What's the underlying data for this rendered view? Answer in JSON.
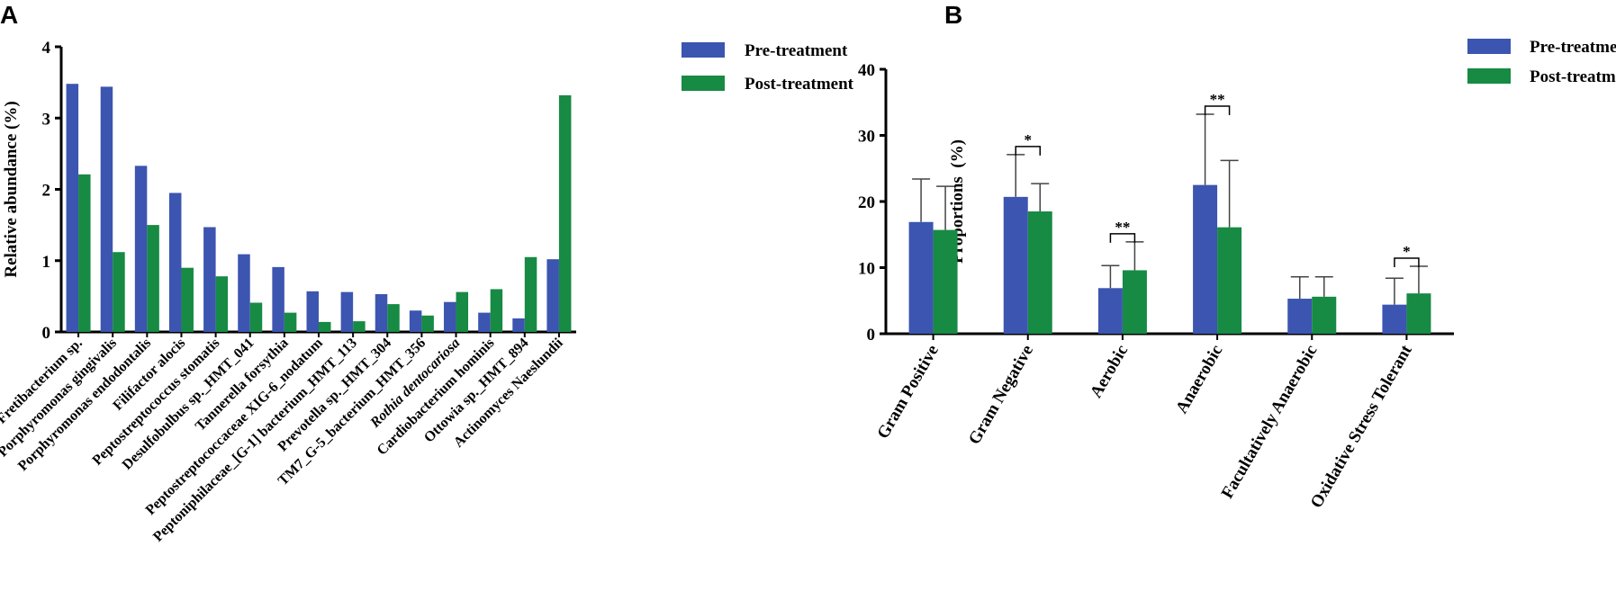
{
  "panels": {
    "a": "A",
    "b": "B"
  },
  "colors": {
    "pre": "#3c55b0",
    "post": "#178a44"
  },
  "chart_data": [
    {
      "type": "bar",
      "panel": "A",
      "ylabel": "Relative abundance (%)",
      "ylim": [
        0,
        4
      ],
      "yticks": [
        0,
        1,
        2,
        3,
        4
      ],
      "categories": [
        "Fretibacterium sp.",
        "Porphyromonas gingivalis",
        "Porphyromonas endodontalis",
        "Filifactor alocis",
        "Peptostreptococcus stomatis",
        "Desulfobulbus sp._HMT_041",
        "Tannerella forsythia",
        "Peptostreptococcaceae XIG-6_nodatum",
        "Peptoniphilaceae_[G-1] bacterium_HMT_113",
        "Prevotella sp._HMT_304",
        "TM7_G-5_bacterium_HMT_356",
        "Rothia dentocariosa",
        "Cardiobacterium hominis",
        "Ottowia sp._HMT_894",
        "Actinomyces Naeslundii"
      ],
      "italic_categories": [
        "Rothia dentocariosa"
      ],
      "series": [
        {
          "name": "Pre-treatment",
          "values": [
            3.48,
            3.44,
            2.33,
            1.95,
            1.47,
            1.09,
            0.91,
            0.57,
            0.56,
            0.53,
            0.3,
            0.42,
            0.27,
            0.19,
            1.02
          ]
        },
        {
          "name": "Post-treatment",
          "values": [
            2.21,
            1.12,
            1.5,
            0.9,
            0.78,
            0.41,
            0.27,
            0.14,
            0.15,
            0.39,
            0.23,
            0.56,
            0.6,
            1.05,
            3.32
          ]
        }
      ]
    },
    {
      "type": "bar",
      "panel": "B",
      "ylabel": "Proportions  (%)",
      "ylim": [
        0,
        40
      ],
      "yticks": [
        0,
        10,
        20,
        30,
        40
      ],
      "categories": [
        "Gram Positive",
        "Gram Negative",
        "Aerobic",
        "Anaerobic",
        "Facultatively Anaerobic",
        "Oxidative Stress Tolerant"
      ],
      "series": [
        {
          "name": "Pre-treatment",
          "values": [
            16.9,
            20.7,
            6.9,
            22.5,
            5.3,
            4.4
          ],
          "errors": [
            6.5,
            6.4,
            3.4,
            10.7,
            3.3,
            4.0
          ]
        },
        {
          "name": "Post-treatment",
          "values": [
            15.7,
            18.5,
            9.6,
            16.1,
            5.6,
            6.1
          ],
          "errors": [
            6.6,
            4.2,
            4.3,
            10.1,
            3.0,
            4.1
          ]
        }
      ],
      "significance": [
        {
          "category": "Gram Negative",
          "label": "*"
        },
        {
          "category": "Aerobic",
          "label": "**"
        },
        {
          "category": "Anaerobic",
          "label": "**"
        },
        {
          "category": "Oxidative Stress Tolerant",
          "label": "*"
        }
      ]
    }
  ]
}
